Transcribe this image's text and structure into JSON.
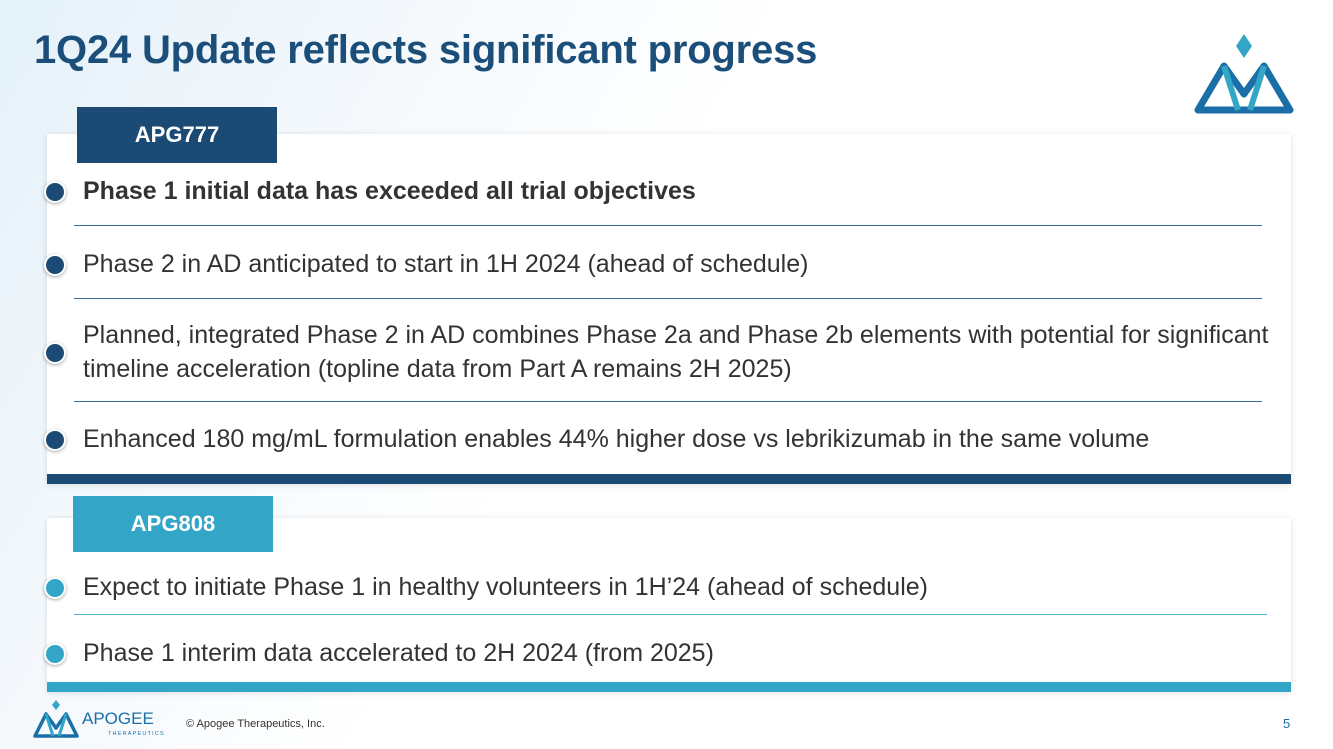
{
  "slide": {
    "title": "1Q24 Update reflects significant progress",
    "page_number": "5"
  },
  "sections": [
    {
      "tag": "APG777",
      "items": [
        "Phase 1 initial data has exceeded all trial objectives",
        "Phase 2 in AD anticipated to start in 1H 2024 (ahead of schedule)",
        "Planned, integrated Phase 2 in AD combines Phase 2a and Phase 2b elements with potential for significant timeline acceleration (topline data from Part A remains 2H 2025)",
        "Enhanced 180 mg/mL formulation enables 44% higher dose vs lebrikizumab in the same volume"
      ]
    },
    {
      "tag": "APG808",
      "items": [
        "Expect to initiate Phase 1 in healthy volunteers in 1H’24 (ahead of schedule)",
        "Phase 1 interim data accelerated to 2H 2024 (from 2025)"
      ]
    }
  ],
  "footer": {
    "brand_name": "APOGEE",
    "brand_sub": "THERAPEUTICS",
    "copyright": "© Apogee Therapeutics, Inc."
  },
  "colors": {
    "navy": "#1b4a75",
    "teal": "#33a6c7",
    "title": "#1b4f7a"
  },
  "icons": {
    "logo": "apogee-mountain-logo-icon"
  }
}
